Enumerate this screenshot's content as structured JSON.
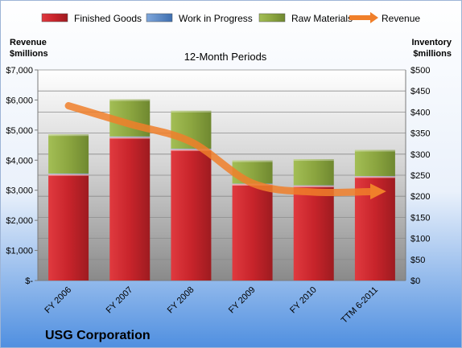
{
  "chart_data": {
    "type": "bar",
    "subtitle": "12-Month Periods",
    "company": "USG Corporation",
    "categories": [
      "FY 2006",
      "FY 2007",
      "FY 2008",
      "FY 2009",
      "FY 2010",
      "TTM 6-2011"
    ],
    "left_axis": {
      "title_line1": "Revenue",
      "title_line2": "$millions",
      "ticks": [
        "$-",
        "$1,000",
        "$2,000",
        "$3,000",
        "$4,000",
        "$5,000",
        "$6,000",
        "$7,000"
      ],
      "range": [
        0,
        7000
      ]
    },
    "right_axis": {
      "title_line1": "Inventory",
      "title_line2": "$millions",
      "ticks": [
        "$0",
        "$50",
        "$100",
        "$150",
        "$200",
        "$250",
        "$300",
        "$350",
        "$400",
        "$450",
        "$500"
      ],
      "range": [
        0,
        500
      ]
    },
    "series": [
      {
        "name": "Finished Goods",
        "axis": "right",
        "kind": "bar",
        "color": "#C0272D",
        "values": [
          252,
          340,
          311,
          229,
          225,
          247
        ]
      },
      {
        "name": "Work in Progress",
        "axis": "right",
        "kind": "bar",
        "color": "#4F81BD",
        "values": [
          2,
          2,
          2,
          1,
          1,
          1
        ]
      },
      {
        "name": "Raw Materials",
        "axis": "right",
        "kind": "bar",
        "color": "#8CA640",
        "values": [
          93,
          88,
          90,
          55,
          62,
          62
        ]
      },
      {
        "name": "Revenue",
        "axis": "left",
        "kind": "line",
        "color": "#F07F2A",
        "values": [
          5810,
          5202,
          4608,
          3235,
          2939,
          2960
        ]
      }
    ],
    "legend_position": "top",
    "grid": true,
    "colors": {
      "plot_bg_top": "#FFFFFF",
      "plot_bg_bottom": "#8A8A8A",
      "page_bg_top": "#FFFFFF",
      "page_bg_bottom": "#4F8FE0"
    }
  }
}
